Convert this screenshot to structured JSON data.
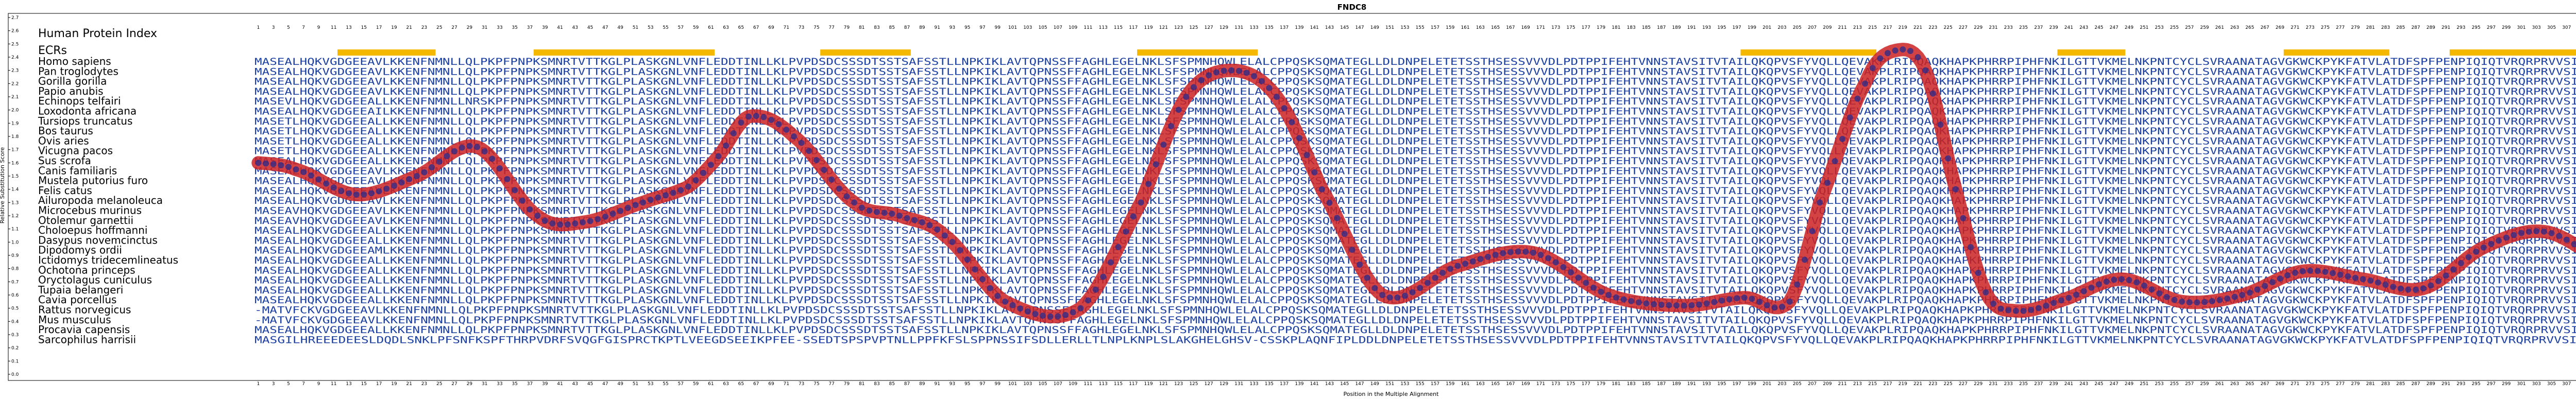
{
  "chart_data": {
    "type": "line",
    "title": "FNDC8",
    "xlabel": "Position in the Multiple Alignment",
    "ylabel": "Relative Substitution Score",
    "ylim": [
      0.0,
      2.7
    ],
    "yticks": [
      0.0,
      0.1,
      0.2,
      0.3,
      0.4,
      0.5,
      0.6,
      0.7,
      0.8,
      0.9,
      1.0,
      1.1,
      1.2,
      1.3,
      1.4,
      1.5,
      1.6,
      1.7,
      1.8,
      1.9,
      2.0,
      2.1,
      2.2,
      2.3,
      2.4,
      2.5,
      2.6,
      2.7
    ],
    "xlim": [
      1,
      324
    ],
    "panel_title": "Human Protein Index",
    "ecr_label": "ECRs",
    "ecr_color": "#f5b800",
    "curve_color": "#cc2222",
    "point_color": "#2a2a8a",
    "ecr_regions": [
      [
        12,
        24
      ],
      [
        38,
        61
      ],
      [
        76,
        87
      ],
      [
        118,
        133
      ],
      [
        198,
        215
      ],
      [
        240,
        248
      ],
      [
        270,
        283
      ],
      [
        292,
        318
      ]
    ],
    "species": [
      "Homo sapiens",
      "Pan troglodytes",
      "Gorilla gorilla",
      "Papio anubis",
      "Echinops telfairi",
      "Loxodonta africana",
      "Tursiops truncatus",
      "Bos taurus",
      "Ovis aries",
      "Vicugna pacos",
      "Sus scrofa",
      "Canis familiaris",
      "Mustela putorius furo",
      "Felis catus",
      "Ailuropoda melanoleuca",
      "Microcebus murinus",
      "Otolemur garnettii",
      "Choloepus hoffmanni",
      "Dasypus novemcinctus",
      "Dipodomys ordii",
      "Ictidomys tridecemlineatus",
      "Ochotona princeps",
      "Oryctolagus cuniculus",
      "Tupaia belangeri",
      "Cavia porcellus",
      "Rattus norvegicus",
      "Mus musculus",
      "Procavia capensis",
      "Sarcophilus harrisii"
    ],
    "sequences": [
      "MASEALHQKVGDGEEAVLKKENFNMNLLQLPKPFPNPKSMNRTVTTKGLPLASKGNLVNFLEDDTINLLKLPVPDSDCSSSDTSSTSAFSSTLLNPKIKLAVTQPNSSFFAGHLEGELNKLSFSPMNHQWLELALCPPQSKSQMATEGLLDLDNPELETETSSTHSESSVVVDLPDTPPIFEHTVNNSTAVSITVTAILQKQPVSFYVQLLQEVAKPLRIPQAQKHAPKPHRRPIPHFNKILGTTVKMELNKPNTCYCLSVRAANATAGVGKWCKPYKFATVLATDFSPFPENPIQIQTVRQRPRVVSIGEPERRLEDLEYLFPY",
      "MASEALHQKVGDGEEAVLKKENFNMNLLQLPKPFPNPKSMNRTVTTKGLPLASKGNLVNFLEDDTINLLKLPVPDSDCSSSDTSSTSAFSSTLLNPKIKLAVTQPNSSFFAGHLEGELNKLSFSPMNHQWLELALCPPQSKSQMATEGLLDLDNPELETETSSTHSESSVVVDLPDTPPIFEHTVNNSTAVSITVTAILQKQPVSFYVQLLQEVAKPLRIPQAQKHAPKPHRRPIPHFNKILGTTVKMELNKPNTCYCLSVRAANATAGVGKWCKPYKFATVLATDFSPFPENPIQIQTVRQRPRVVSIGEPERRLEDLEYLFPY",
      "MASEALHQKVGDGEEAVLKKENFNMNLLQLPKPFPNPKSMNRTVTTKGLPLASKGNLVNFLEDDTINLLKLPVPDSDCSSSDTSSTSAFSSTLLNPKIKLAVTQPNSSFFAGHLEGELNKLSFSPMNHQWLELALCPPQSKSQMATEGLLDLDNPELETETSSTHSESSVVVDLPDTPPIFEHTVNNSTAVSITVTAILQKQPVSFYVQLLQEVAKPLRIPQAQKHAPKPHRRPIPHFNKILGTTVKMELNKPNTCYCLSVRAANATAGVGKWCKPYKFATVLATDFSPFPENPIQIQTVRQRPRVVSIGEPERRLEDLEYLFPY",
      "MASEALHQKVGDGEEAVLKKENFNMNLLQLPKPFPNPKSMNRTVTTKGLPLASKGNLVNFLEDDTINLLKLPVPDSDCSSSDTSSTSAFSSTLLNPKIKLAVTQPNSSFFAGHLEGELNKLSFSPMNHQWLELALCPPQSKSQMATEGLLDLDNPELETETSSTHSESSVVVDLPDTPPIFEHTVNNSTAVSITVTAILQKQPVSFYVQLLQEVAKPLRIPQAQKHAPKPHRRPIPHFNKILGTTVKMELNKPNTCYCLSVRAANATAGVGKWCKPYKFATVLATDFSPFPENPIQIQTVRQRPRVVSIGEPERRLEDLEYLFPY",
      "MASEVLHQKVGDGEEALLKKENFNMNLLNRSKPFPNPKSMNRTVTTKGLPLASKGNLVNFLEDDTINLLKLPVPDSDCSSSDTSSTSAFSSTLLNPKIKLAVTQPNSSFFAGHLEGELNKLSFSPMNHQWLELALCPPQSKSQMATEGLLDLDNPELETETSSTHSESSVVVDLPDTPPIFEHTVNNSTAVSITVTAILQKQPVSFYVQLLQEVAKPLRIPQAQKHAPKPHRRPIPHFNKILGTTVKMELNKPNTCYCLSVRAANATAGVGKWCKPYKFATVLATDFSPFPENPIQIQTVRQRPRVVSIGEPERRLEDLEYLFPY",
      "MASEALHQKVGDGEEAILKKENFNMNLLQLPKPFPNPKSMNRTVTTKGLPLASKGNLVNFLEDDTINLLKLPVPDSDCSSSDTSSTSAFSSTLLNPKIKLAVTQPNSSFFAGHLEGELNKLSFSPMNHQWLELALCPPQSKSQMATEGLLDLDNPELETETSSTHSESSVVVDLPDTPPIFEHTVNNSTAVSITVTAILQKQPVSFYVQLLQEVAKPLRIPQAQKHAPKPHRRPIPHFNKILGTTVKMELNKPNTCYCLSVRAANATAGVGKWCKPYKFATVLATDFSPFPENPIQIQTVRQRPRVVSIGEPERRLEDLEYLFPY",
      "MASETLHQKVGDGEEALLKKENFNMNLLQLPKPFPNPKSMNRTVTTKGLPLASKGNLVNFLEDDTINLLKLPVPDSDCSSSDTSSTSAFSSTLLNPKIKLAVTQPNSSFFAGHLEGELNKLSFSPMNHQWLELALCPPQSKSQMATEGLLDLDNPELETETSSTHSESSVVVDLPDTPPIFEHTVNNSTAVSITVTAILQKQPVSFYVQLLQEVAKPLRIPQAQKHAPKPHRRPIPHFNKILGTTVKMELNKPNTCYCLSVRAANATAGVGKWCKPYKFATVLATDFSPFPENPIQIQTVRQRPRVVSIGEPERRLEDLEYLFPY",
      "MASETLHQKVGDGEEALLKKENFNMNLLQLPKPFPNPKSMNRTVTTKGLPLASKGNLVNFLEDDTINLLKLPVPDSDCSSSDTSSTSAFSSTLLNPKIKLAVTQPNSSFFAGHLEGELNKLSFSPMNHQWLELALCPPQSKSQMATEGLLDLDNPELETETSSTHSESSVVVDLPDTPPIFEHTVNNSTAVSITVTAILQKQPVSFYVQLLQEVAKPLRIPQAQKHAPKPHRRPIPHFNKILGTTVKMELNKPNTCYCLSVRAANATAGVGKWCKPYKFATVLATDFSPFPENPIQIQTVRQRPRVVSIGEPERRLEDLEYLFPY",
      "MASETLHQKVGDGEEALLKKENFNMNLLQLPKPFPNPKSMNRTVTTKGLPLASKGNLVNFLEDDTINLLKLPVPDSDCSSSDTSSTSAFSSTLLNPKIKLAVTQPNSSFFAGHLEGELNKLSFSPMNHQWLELALCPPQSKSQMATEGLLDLDNPELETETSSTHSESSVVVDLPDTPPIFEHTVNNSTAVSITVTAILQKQPVSFYVQLLQEVAKPLRIPQAQKHAPKPHRRPIPHFNKILGTTVKMELNKPNTCYCLSVRAANATAGVGKWCKPYKFATVLATDFSPFPENPIQIQTVRQRPRVVSIGEPERRLEDLEYLFPY",
      "MASETLHQKVGDGEEALLKKENFNMNLLQLPKPFPNPKSMNRTVTTKGLPLASKGNLVNFLEDDTINLLKLPVPDSDCSSSDTSSTSAFSSTLLNPKIKLAVTQPNSSFFAGHLEGELNKLSFSPMNHQWLELALCPPQSKSQMATEGLLDLDNPELETETSSTHSESSVVVDLPDTPPIFEHTVNNSTAVSITVTAILQKQPVSFYVQLLQEVAKPLRIPQAQKHAPKPHRRPIPHFNKILGTTVKMELNKPNTCYCLSVRAANATAGVGKWCKPYKFATVLATDFSPFPENPIQIQTVRQRPRVVSIGEPERRLEDLEYLFPY",
      "MASEALHQKVGDGEEALLKKENFNMNLLQLPKPFPNPKSMNRTVTTKGLPLASKGNLVNFLEDDTINLLKLPVPDSDCSSSDTSSTSAFSSTLLNPKIKLAVTQPNSSFFAGHLEGELNKLSFSPMNHQWLELALCPPQSKSQMATEGLLDLDNPELETETSSTHSESSVVVDLPDTPPIFEHTVNNSTAVSITVTAILQKQPVSFYVQLLQEVAKPLRIPQAQKHAPKPHRRPIPHFNKILGTTVKMELNKPNTCYCLSVRAANATAGVGKWCKPYKFATVLATDFSPFPENPIQIQTVRQRPRVVSIGEPERRLEDLEYLFPY",
      "MASEALHQKVGDGEEAVLKKENFNMNLLQLPKPFPNPKSMNRTVTTKGLPLASKGNLVNFLEDDTINLLKLPVPDSDCSSSDTSSTSAFSSTLLNPKIKLAVTQPNSSFFAGHLEGELNKLSFSPMNHQWLELALCPPQSKSQMATEGLLDLDNPELETETSSTHSESSVVVDLPDTPPIFEHTVNNSTAVSITVTAILQKQPVSFYVQLLQEVAKPLRIPQAQKHAPKPHRRPIPHFNKILGTTVKMELNKPNTCYCLSVRAANATAGVGKWCKPYKFATVLATDFSPFPENPIQIQTVRQRPRVVSIGEPERRLEDLEYLFPY",
      "MASEALHQKVGDGEEAVLKKENFNMNLLQLPKPFPNPKSMNRTVTTKGLPLASKGNLVNFLEDDTINLLKLPVPDSDCSSSDTSSTSAFSSTLLNPKIKLAVTQPNSSFFAGHLEGELNKLSFSPMNHQWLELALCPPQSKSQMATEGLLDLDNPELETETSSTHSESSVVVDLPDTPPIFEHTVNNSTAVSITVTAILQKQPVSFYVQLLQEVAKPLRIPQAQKHAPKPHRRPIPHFNKILGTTVKMELNKPNTCYCLSVRAANATAGVGKWCKPYKFATVLATDFSPFPENPIQIQTVRQRPRVVSIGEPERRLEDLEYLFPY",
      "MASEALHQKVGDGEEAVLKKENFNMNLLQLPKPFPNPKSMNRTVTTKGLPLASKGNLVNFLEDDTINLLKLPVPDSDCSSSDTSSTSAFSSTLLNPKIKLAVTQPNSSFFAGHLEGELNKLSFSPMNHQWLELALCPPQSKSQMATEGLLDLDNPELETETSSTHSESSVVVDLPDTPPIFEHTVNNSTAVSITVTAILQKQPVSFYVQLLQEVAKPLRIPQAQKHAPKPHRRPIPHFNKILGTTVKMELNKPNTCYCLSVRAANATAGVGKWCKPYKFATVLATDFSPFPENPIQIQTVRQRPRVVSIGEPERRLEDLEYLFPY",
      "MASEALHQKVGDGEEAVLKKENFNMNLLQLPKPFPNPKSMNRTVTTKGLPLASKGNLVNFLEDDTINLLKLPVPDSDCSSSDTSSTSAFSSTLLNPKIKLAVTQPNSSFFAGHLEGELNKLSFSPMNHQWLELALCPPQSKSQMATEGLLDLDNPELETETSSTHSESSVVVDLPDTPPIFEHTVNNSTAVSITVTAILQKQPVSFYVQLLQEVAKPLRIPQAQKHAPKPHRRPIPHFNKILGTTVKMELNKPNTCYCLSVRAANATAGVGKWCKPYKFATVLATDFSPFPENPIQIQTVRQRPRVVSIGEPERRLEDLEYLFPY",
      "MASEAVHQKVGDGEEAVLKKENFNMNLLQLPKPFPNPKSMNRTVTTKGLPLASKGNLVNFLEDDTINLLKLPVPDSDCSSSDTSSTSAFSSTLLNPKIKLAVTQPNSSFFAGHLEGELNKLSFSPMNHQWLELALCPPQSKSQMATEGLLDLDNPELETETSSTHSESSVVVDLPDTPPIFEHTVNNSTAVSITVTAILQKQPVSFYVQLLQEVAKPLRIPQAQKHAPKPHRRPIPHFNKILGTTVKMELNKPNTCYCLSVRAANATAGVGKWCKPYKFATVLATDFSPFPENPIQIQTVRQRPRVVSIGEPERRLEDLEYLFPY",
      "MASEAVHQKVGDGEEAVLKKENFNMNLLQLPKPFPNPKSMNRTVTTKGLPLASKGNLVNFLEDDTINLLKLPVPDSDCSSSDTSSTSAFSSTLLNPKIKLAVTQPNSSFFAGHLEGELNKLSFSPMNHQWLELALCPPQSKSQMATEGLLDLDNPELETETSSTHSESSVVVDLPDTPPIFEHTVNNSTAVSITVTAILQKQPVSFYVQLLQEVAKPLRIPQAQKHAPKPHRRPIPHFNKILGTTVKMELNKPNTCYCLSVRAANATAGVGKWCKPYKFATVLATDFSPFPENPIQIQTVRQRPRVVSIGEPERRLEDLEYLFPY",
      "MASEALHQKVGDGEEALLKKENFNMNLLQLPKPFPNPKSMNRTVTTKGLPLASKGNLVNFLEDDTINLLKLPVPDSDCSSSDTSSTSAFSSTLLNPKIKLAVTQPNSSFFAGHLEGELNKLSFSPMNHQWLELALCPPQSKSQMATEGLLDLDNPELETETSSTHSESSVVVDLPDTPPIFEHTVNNSTAVSITVTAILQKQPVSFYVQLLQEVAKPLRIPQAQKHAPKPHRRPIPHFNKILGTTVKMELNKPNTCYCLSVRAANATAGVGKWCKPYKFATVLATDFSPFPENPIQIQTVRQRPRVVSIGEPERRLEDLEYLFPY",
      "MASEALHQKVGDGEEALLKKENFNMNLLQLPKPFPNPKSMNRTVTTKGLPLASKGNLVNFLEDDTINLLKLPVPDSDCSSSDTSSTSAFSSTLLNPKIKLAVTQPNSSFFAGHLEGELNKLSFSPMNHQWLELALCPPQSKSQMATEGLLDLDNPELETETSSTHSESSVVVDLPDTPPIFEHTVNNSTAVSITVTAILQKQPVSFYVQLLQEVAKPLRIPQAQKHAPKPHRRPIPHFNKILGTTVKMELNKPNTCYCLSVRAANATAGVGKWCKPYKFATVLATDFSPFPENPIQIQTVRQRPRVVSIGEPERRLEDLEYLFPY",
      "MASEALHQKVGDGEEAMLKKENFNMNLLQLPKPFPNPKSMNRTVTTKGLPLASKGNLVNFLEDDTINLLKLPVPDSDCSSSDTSSTSAFSSTLLNPKIKLAVTQPNSSFFAGHLEGELNKLSFSPMNHQWLELALCPPQSKSQMATEGLLDLDNPELETETSSTHSESSVVVDLPDTPPIFEHTVNNSTAVSITVTAILQKQPVSFYVQLLQEVAKPLRIPQAQKHAPKPHRRPIPHFNKILGTTVKMELNKPNTCYCLSVRAANATAGVGKWCKPYKFATVLATDFSPFPENPIQIQTVRQRPRVVSIGEPERRLEDLEYLFPY",
      "MASEALHQKVGDGEEALLKKENFNMNLLQLPKPFPNPKSMNRTVTTKGLPLASKGNLVNFLEDDTINLLKLPVPDSDCSSSDTSSTSAFSSTLLNPKIKLAVTQPNSSFFAGHLEGELNKLSFSPMNHQWLELALCPPQSKSQMATEGLLDLDNPELETETSSTHSESSVVVDLPDTPPIFEHTVNNSTAVSITVTAILQKQPVSFYVQLLQEVAKPLRIPQAQKHAPKPHRRPIPHFNKILGTTVKMELNKPNTCYCLSVRAANATAGVGKWCKPYKFATVLATDFSPFPENPIQIQTVRQRPRVVSIGEPERRLEDLEYLFPY",
      "MASEALHQKVGDGEEALLKKENFNMNLLQLPKPFPNPKSMNRTVTTKGLPLASKGNLVNFLEDDTINLLKLPVPDSDCSSSDTSSTSAFSSTLLNPKIKLAVTQPNSSFFAGHLEGELNKLSFSPMNHQWLELALCPPQSKSQMATEGLLDLDNPELETETSSTHSESSVVVDLPDTPPIFEHTVNNSTAVSITVTAILQKQPVSFYVQLLQEVAKPLRIPQAQKHAPKPHRRPIPHFNKILGTTVKMELNKPNTCYCLSVRAANATAGVGKWCKPYKFATVLATDFSPFPENPIQIQTVRQRPRVVSIGEPERRLEDLEYLFPY",
      "MASEALHQKVGDGEEALLKKENFNMNLLQLPKPFPNPKSMNRTVTTKGLPLASKGNLVNFLEDDTINLLKLPVPDSDCSSSDTSSTSAFSSTLLNPKIKLAVTQPNSSFFAGHLEGELNKLSFSPMNHQWLELALCPPQSKSQMATEGLLDLDNPELETETSSTHSESSVVVDLPDTPPIFEHTVNNSTAVSITVTAILQKQPVSFYVQLLQEVAKPLRIPQAQKHAPKPHRRPIPHFNKILGTTVKMELNKPNTCYCLSVRAANATAGVGKWCKPYKFATVLATDFSPFPENPIQIQTVRQRPRVVSIGEPERRLEDLEYLFPY",
      "MASEALHQKVGDGEEALLKKENFNMNLLQLPKPFPNPKSMNRTVTTKGLPLASKGNLVNFLEDDTINLLKLPVPDSDCSSSDTSSTSAFSSTLLNPKIKLAVTQPNSSFFAGHLEGELNKLSFSPMNHQWLELALCPPQSKSQMATEGLLDLDNPELETETSSTHSESSVVVDLPDTPPIFEHTVNNSTAVSITVTAILQKQPVSFYVQLLQEVAKPLRIPQAQKHAPKPHRRPIPHFNKILGTTVKMELNKPNTCYCLSVRAANATAGVGKWCKPYKFATVLATDFSPFPENPIQIQTVRQRPRVVSIGEPERRLEDLEYLFPY",
      "MASEALHQKVGDGEEALLKKENFNMNLLQLPKPFPNPKSMNRTVTTKGLPLASKGNLVNFLEDDTINLLKLPVPDSDCSSSDTSSTSAFSSTLLNPKIKLAVTQPNSSFFAGHLEGELNKLSFSPMNHQWLELALCPPQSKSQMATEGLLDLDNPELETETSSTHSESSVVVDLPDTPPIFEHTVNNSTAVSITVTAILQKQPVSFYVQLLQEVAKPLRIPQAQKHAPKPHRRPIPHFNKILGTTVKMELNKPNTCYCLSVRAANATAGVGKWCKPYKFATVLATDFSPFPENPIQIQTVRQRPRVVSIGEPERRLEDLEYLFPY",
      "-MATVFCKVGDGEEAVLKKENFNMNLLQLPKPFPNPKSMNRTVTTKGLPLASKGNLVNFLEDDTINLLKLPVPDSDCSSSDTSSTSAFSSTLLNPKIKLAVTQPNSSFFAGHLEGELNKLSFSPMNHQWLELALCPPQSKSQMATEGLLDLDNPELETETSSTHSESSVVVDLPDTPPIFEHTVNNSTAVSITVTAILQKQPVSFYVQLLQEVAKPLRIPQAQKHAPKPHRRPIPHFNKILGTTVKMELNKPNTCYCLSVRAANATAGVGKWCKPYKFATVLATDFSPFPENPIQIQTVRQRPRVVSIGEPERRLEDLEYLFPY",
      "-MATVFCKVGDGEEAVLKKENFNMNLLQLPKPFPNPKSMNRTVTTKGLPLASKGNLVNFLEDDTINLLKLPVPDSDCSSSDTSSTSAFSSTLLNPKIKLAVTQPNSSFFAGHLEGELNKLSFSPMNHQWLELALCPPQSKSQMATEGLLDLDNPELETETSSTHSESSVVVDLPDTPPIFEHTVNNSTAVSITVTAILQKQPVSFYVQLLQEVAKPLRIPQAQKHAPKPHRRPIPHFNKILGTTVKMELNKPNTCYCLSVRAANATAGVGKWCKPYKFATVLATDFSPFPENPIQIQTVRQRPRVVSIGEPERRLEDLEYLFPY",
      "MASEALHQKVGDGEEALLKKENFNMNLLQLPKPFPNPKSMNRTVTTKGLPLASKGNLVNFLEDDTINLLKLPVPDSDCSSSDTSSTSAFSSTLLNPKIKLAVTQPNSSFFAGHLEGELNKLSFSPMNHQWLELALCPPQSKSQMATEGLLDLDNPELETETSSTHSESSVVVDLPDTPPIFEHTVNNSTAVSITVTAILQKQPVSFYVQLLQEVAKPLRIPQAQKHAPKPHRRPIPHFNKILGTTVKMELNKPNTCYCLSVRAANATAGVGKWCKPYKFATVLATDFSPFPENPIQIQTVRQRPRVVSIGEPERRLEDLEYLFPY",
      "MASGILHREEEDEESLDQDLSNKLPFSNFKSPFTHRPVDRFSVQGFGISPRCTKPTLVEEGDSEEIKPFEE-SSEDTSPSPVPTNLLPPFKFSLSPPNSSIFSDLLERLLTLNPLKNPLSLAKGHELGHSV-CSSKPLAQNFIPLDDLDNPELETETSSTHSESSVVVDLPDTPPIFEHTVNNSTAVSITVTAILQKQPVSFYVQLLQEVAKPLRIPQAQKHAPKPHRRPIPHFNKILGTTVKMELNKPNTCYCLSVRAANATAGVGKWCKPYKFATVLATDFSPFPENPIQIQTVRQRPRVVSIGEPERRLEDLEYLFPY"
    ],
    "curve_x": [
      1,
      6,
      14,
      22,
      30,
      38,
      44,
      52,
      58,
      62,
      66,
      72,
      80,
      86,
      92,
      100,
      110,
      118,
      124,
      130,
      136,
      142,
      150,
      160,
      170,
      180,
      190,
      198,
      204,
      208,
      214,
      218,
      222,
      226,
      230,
      234,
      240,
      248,
      256,
      264,
      272,
      280,
      288,
      296,
      304,
      312,
      318,
      324
    ],
    "curve_y": [
      1.6,
      1.55,
      1.36,
      1.5,
      1.72,
      1.2,
      1.15,
      1.3,
      1.42,
      1.65,
      1.95,
      1.8,
      1.3,
      1.2,
      1.05,
      0.55,
      0.5,
      1.3,
      2.1,
      2.3,
      2.1,
      1.4,
      0.6,
      0.82,
      0.92,
      0.6,
      0.52,
      0.58,
      0.55,
      1.3,
      2.2,
      2.45,
      2.3,
      1.4,
      0.62,
      0.48,
      0.56,
      0.72,
      0.55,
      0.6,
      0.78,
      0.72,
      0.65,
      0.96,
      1.08,
      0.85,
      0.65,
      0.72
    ]
  }
}
